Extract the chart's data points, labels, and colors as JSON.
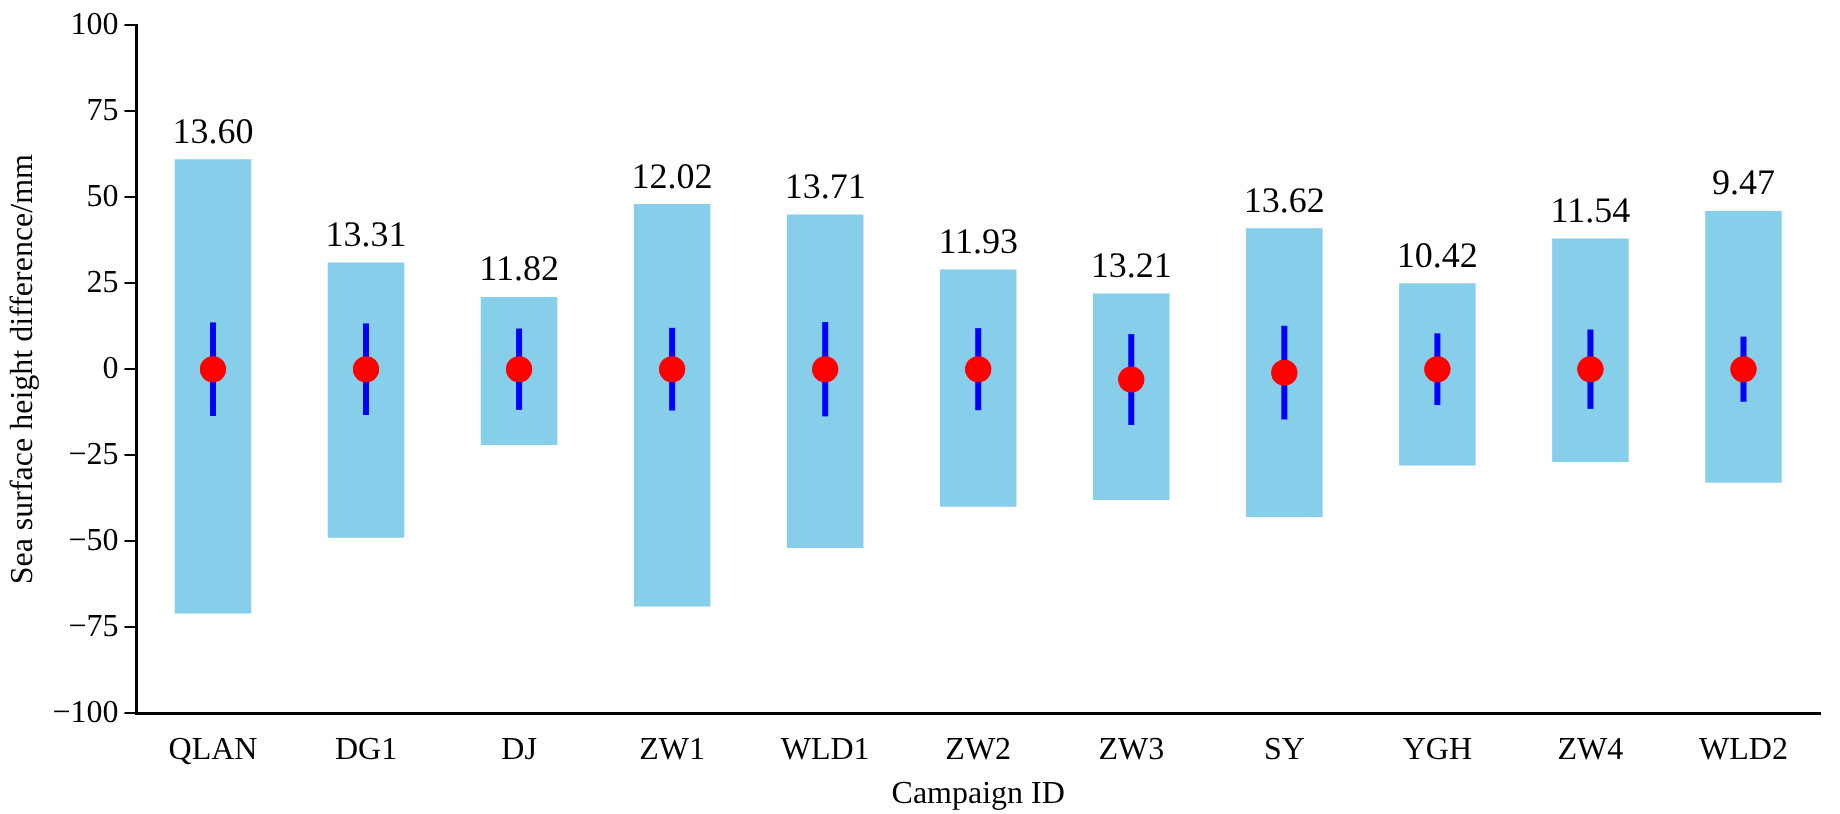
{
  "chart_data": {
    "type": "bar",
    "xlabel": "Campaign ID",
    "ylabel": "Sea surface height difference/mm",
    "categories": [
      "QLAN",
      "DG1",
      "DJ",
      "ZW1",
      "WLD1",
      "ZW2",
      "ZW3",
      "SY",
      "YGH",
      "ZW4",
      "WLD2"
    ],
    "ylim": [
      -100,
      100
    ],
    "yticks": [
      {
        "value": -100,
        "label": "−100"
      },
      {
        "value": -75,
        "label": "−75"
      },
      {
        "value": -50,
        "label": "−50"
      },
      {
        "value": -25,
        "label": "−25"
      },
      0,
      25,
      50,
      75,
      100
    ],
    "grid": false,
    "legend": false,
    "series": [
      {
        "color": "#87ceeb",
        "base": [
          -71,
          -49,
          -22,
          -69,
          -52,
          -40,
          -38,
          -43,
          -28,
          -27,
          -33
        ],
        "values": [
          132,
          80,
          43,
          117,
          97,
          69,
          60,
          84,
          53,
          65,
          79
        ]
      },
      {
        "type": "scatter",
        "color": "#ff0000",
        "marker": "circle",
        "values": [
          0,
          0,
          0,
          0,
          0,
          0,
          -3,
          -1,
          0,
          0,
          0
        ],
        "errors": [
          13.6,
          13.31,
          11.82,
          12.02,
          13.71,
          11.93,
          13.21,
          13.62,
          10.42,
          11.54,
          9.47
        ]
      }
    ],
    "annotations": [
      {
        "text": "13.60",
        "x": "QLAN",
        "y": 61
      },
      {
        "text": "13.31",
        "x": "DG1",
        "y": 31
      },
      {
        "text": "11.82",
        "x": "DJ",
        "y": 21
      },
      {
        "text": "12.02",
        "x": "ZW1",
        "y": 48
      },
      {
        "text": "13.71",
        "x": "WLD1",
        "y": 45
      },
      {
        "text": "11.93",
        "x": "ZW2",
        "y": 29
      },
      {
        "text": "13.21",
        "x": "ZW3",
        "y": 22
      },
      {
        "text": "13.62",
        "x": "SY",
        "y": 41
      },
      {
        "text": "10.42",
        "x": "YGH",
        "y": 25
      },
      {
        "text": "11.54",
        "x": "ZW4",
        "y": 38
      },
      {
        "text": "9.47",
        "x": "WLD2",
        "y": 46
      }
    ]
  }
}
